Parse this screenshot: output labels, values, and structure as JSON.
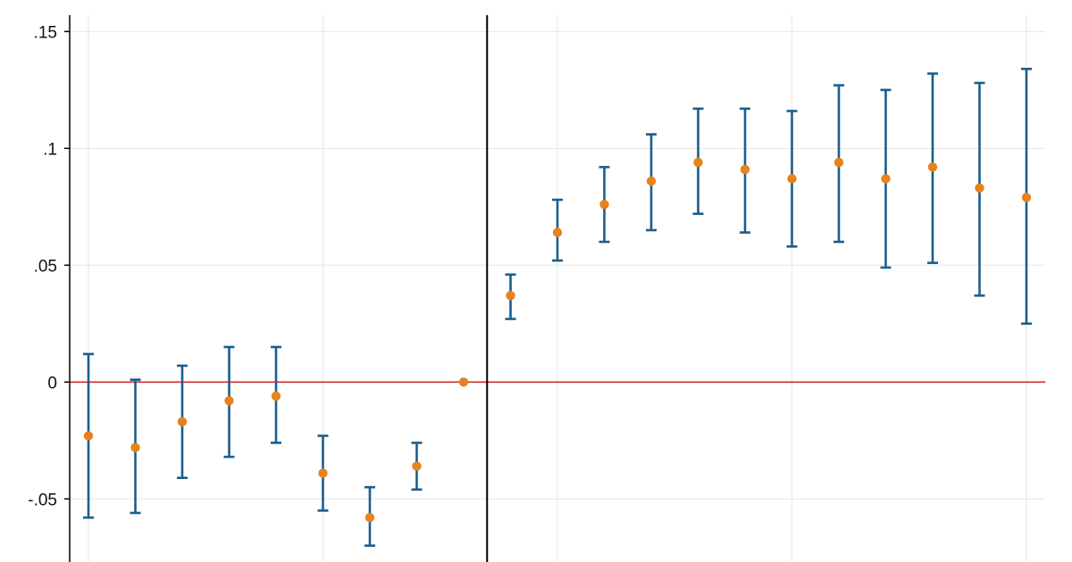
{
  "chart_data": {
    "type": "scatter",
    "title": "",
    "xlabel": "",
    "ylabel": "",
    "x": [
      -9,
      -8,
      -7,
      -6,
      -5,
      -4,
      -3,
      -2,
      -1,
      0,
      1,
      2,
      3,
      4,
      5,
      6,
      7,
      8,
      9,
      10,
      11
    ],
    "y": [
      -0.023,
      -0.028,
      -0.017,
      -0.008,
      -0.006,
      -0.039,
      -0.058,
      -0.036,
      0.0,
      0.037,
      0.064,
      0.076,
      0.086,
      0.094,
      0.091,
      0.087,
      0.094,
      0.087,
      0.092,
      0.083,
      0.079
    ],
    "ci_low": [
      -0.058,
      -0.056,
      -0.041,
      -0.032,
      -0.026,
      -0.055,
      -0.07,
      -0.046,
      0.0,
      0.027,
      0.052,
      0.06,
      0.065,
      0.072,
      0.064,
      0.058,
      0.06,
      0.049,
      0.051,
      0.037,
      0.025
    ],
    "ci_high": [
      0.012,
      0.001,
      0.007,
      0.015,
      0.015,
      -0.023,
      -0.045,
      -0.026,
      0.0,
      0.046,
      0.078,
      0.092,
      0.106,
      0.117,
      0.117,
      0.116,
      0.127,
      0.125,
      0.132,
      0.128,
      0.134
    ],
    "xlim": [
      -9.4,
      11.4
    ],
    "ylim": [
      -0.077,
      0.157
    ],
    "yticks": [
      0.15,
      0.1,
      0.05,
      0,
      -0.05
    ],
    "ytick_labels": [
      ".15",
      ".1",
      ".05",
      "0",
      "-.05"
    ],
    "x_gridlines": [
      -9,
      -4,
      1,
      6,
      11
    ],
    "event_line_x": -0.5,
    "reference_line_y": 0,
    "grid": true,
    "colors": {
      "point": "#e8821e",
      "error_bar": "#1a5e8e",
      "reference_line": "#d62728",
      "event_line": "#000000",
      "grid": "#e6e6e6",
      "axis": "#000000"
    }
  }
}
